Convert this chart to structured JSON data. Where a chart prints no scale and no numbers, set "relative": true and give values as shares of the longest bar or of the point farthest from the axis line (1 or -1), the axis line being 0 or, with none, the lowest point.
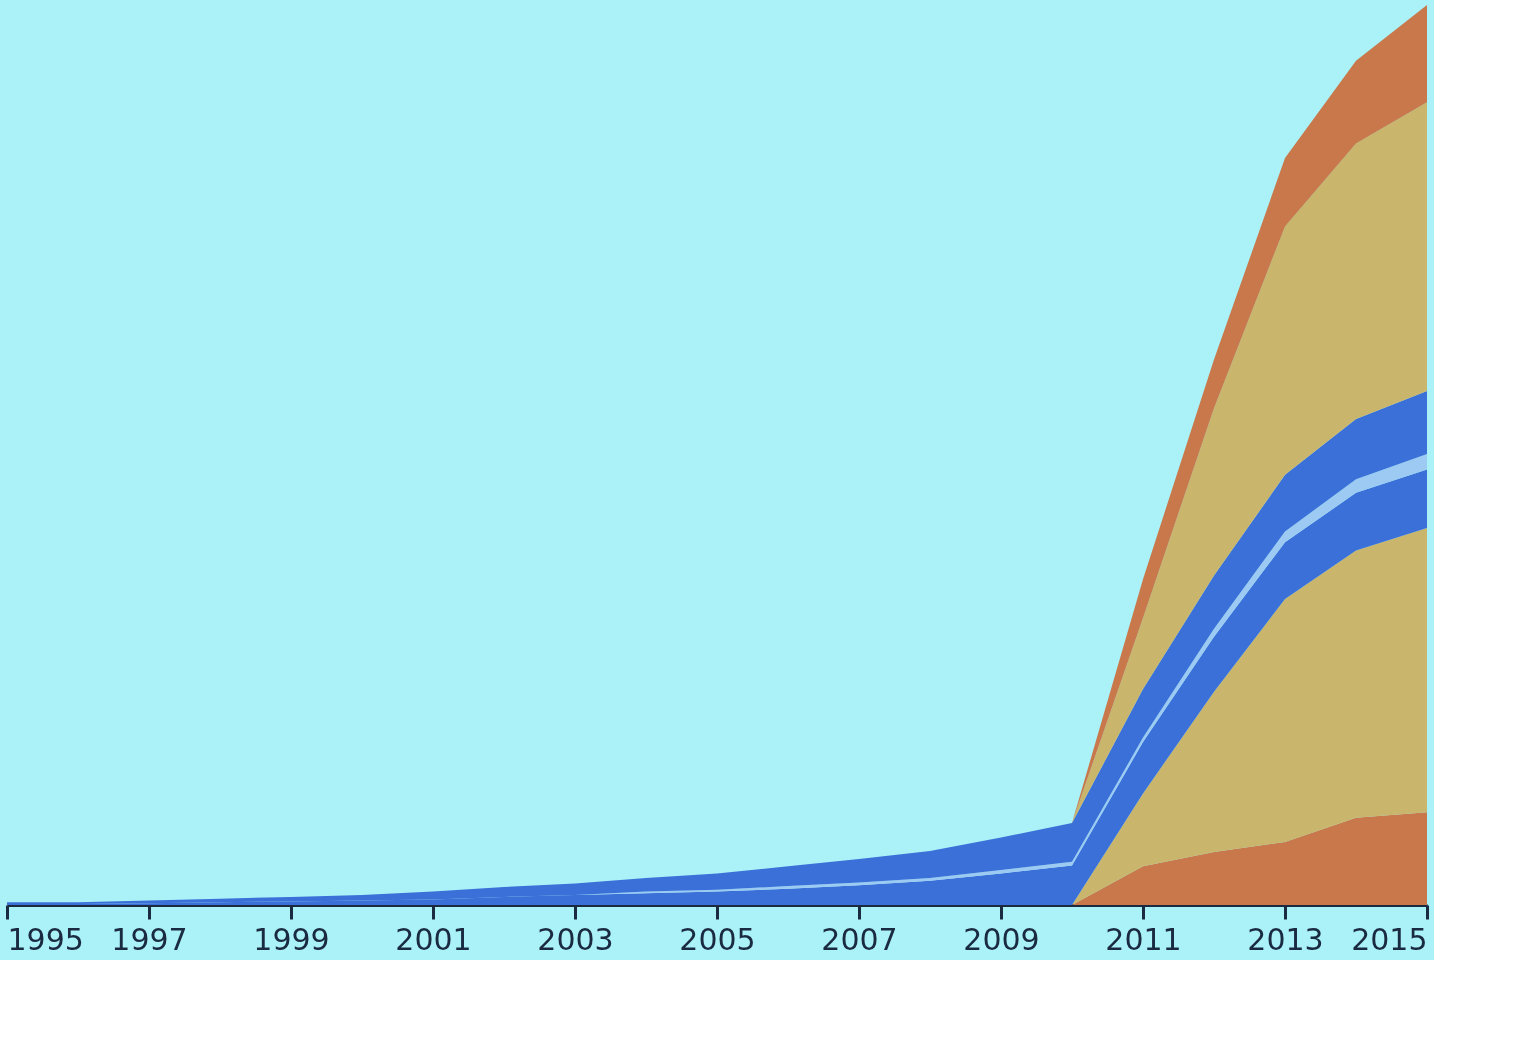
{
  "chart_data": {
    "type": "area",
    "stacked": true,
    "relative": true,
    "x": [
      1995,
      1996,
      1997,
      1998,
      1999,
      2000,
      2001,
      2002,
      2003,
      2004,
      2005,
      2006,
      2007,
      2008,
      2009,
      2010,
      2011,
      2012,
      2013,
      2014,
      2015
    ],
    "xlim": [
      1995,
      2015
    ],
    "xticks": [
      1995,
      1997,
      1999,
      2001,
      2003,
      2005,
      2007,
      2009,
      2011,
      2013,
      2015
    ],
    "grid": false,
    "legend": false,
    "series": [
      {
        "color": "#c8784a",
        "values": [
          0,
          0,
          0,
          0,
          0,
          0,
          0,
          0,
          0,
          0,
          0,
          0,
          0,
          0,
          0,
          0,
          0.043,
          0.059,
          0.07,
          0.097,
          0.103
        ]
      },
      {
        "color": "#c9b56b",
        "values": [
          0,
          0,
          0,
          0,
          0,
          0,
          0,
          0,
          0,
          0,
          0,
          0,
          0,
          0,
          0,
          0,
          0.081,
          0.178,
          0.27,
          0.297,
          0.316
        ]
      },
      {
        "color": "#3b70d8",
        "values": [
          0.001,
          0.001,
          0.002,
          0.003,
          0.004,
          0.005,
          0.006,
          0.009,
          0.011,
          0.013,
          0.015,
          0.018,
          0.022,
          0.027,
          0.035,
          0.044,
          0.057,
          0.061,
          0.063,
          0.064,
          0.065
        ]
      },
      {
        "color": "#9ccaf2",
        "values": [
          0,
          0,
          0,
          0,
          0,
          0,
          0,
          0,
          0,
          0.002,
          0.002,
          0.003,
          0.003,
          0.003,
          0.004,
          0.004,
          0.005,
          0.009,
          0.012,
          0.015,
          0.017
        ]
      },
      {
        "color": "#3b70d8",
        "values": [
          0.002,
          0.002,
          0.003,
          0.004,
          0.005,
          0.006,
          0.009,
          0.011,
          0.013,
          0.015,
          0.018,
          0.022,
          0.026,
          0.03,
          0.036,
          0.043,
          0.054,
          0.059,
          0.063,
          0.067,
          0.07
        ]
      },
      {
        "color": "#c9b56b",
        "values": [
          0,
          0,
          0,
          0,
          0,
          0,
          0,
          0,
          0,
          0,
          0,
          0,
          0,
          0,
          0,
          0,
          0.079,
          0.186,
          0.276,
          0.306,
          0.321
        ]
      },
      {
        "color": "#c8784a",
        "values": [
          0,
          0,
          0,
          0,
          0,
          0,
          0,
          0,
          0,
          0,
          0,
          0,
          0,
          0,
          0,
          0,
          0.043,
          0.054,
          0.076,
          0.092,
          0.108
        ]
      }
    ]
  }
}
